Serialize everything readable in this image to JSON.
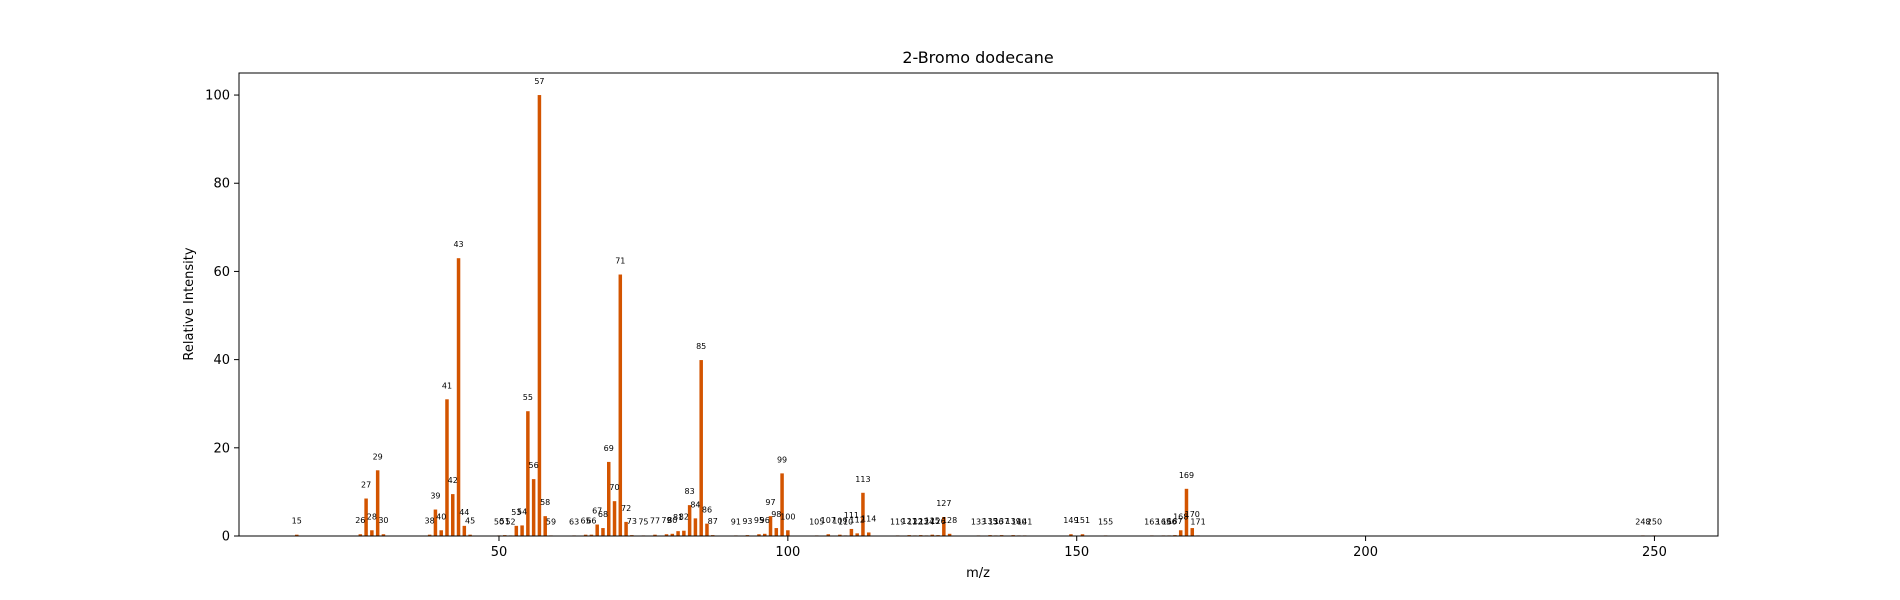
{
  "chart_data": {
    "type": "bar",
    "title": "2-Bromo dodecane",
    "xlabel": "m/z",
    "ylabel": "Relative Intensity",
    "xlim": [
      5,
      261
    ],
    "ylim": [
      0,
      105
    ],
    "xticks": [
      50,
      100,
      150,
      200,
      250
    ],
    "yticks": [
      0,
      20,
      40,
      60,
      80,
      100
    ],
    "grid": false,
    "bar_color": "#d35400",
    "peaks": [
      {
        "mz": 15,
        "intensity": 0.3
      },
      {
        "mz": 26,
        "intensity": 0.4
      },
      {
        "mz": 27,
        "intensity": 8.5
      },
      {
        "mz": 28,
        "intensity": 1.3
      },
      {
        "mz": 29,
        "intensity": 14.9
      },
      {
        "mz": 30,
        "intensity": 0.4
      },
      {
        "mz": 38,
        "intensity": 0.3
      },
      {
        "mz": 39,
        "intensity": 6.0
      },
      {
        "mz": 40,
        "intensity": 1.3
      },
      {
        "mz": 41,
        "intensity": 31.0
      },
      {
        "mz": 42,
        "intensity": 9.5
      },
      {
        "mz": 43,
        "intensity": 63.0
      },
      {
        "mz": 44,
        "intensity": 2.3
      },
      {
        "mz": 45,
        "intensity": 0.3
      },
      {
        "mz": 50,
        "intensity": 0.1
      },
      {
        "mz": 51,
        "intensity": 0.2
      },
      {
        "mz": 52,
        "intensity": 0.1
      },
      {
        "mz": 53,
        "intensity": 2.3
      },
      {
        "mz": 54,
        "intensity": 2.4
      },
      {
        "mz": 55,
        "intensity": 28.3
      },
      {
        "mz": 56,
        "intensity": 12.9
      },
      {
        "mz": 57,
        "intensity": 100
      },
      {
        "mz": 58,
        "intensity": 4.5
      },
      {
        "mz": 59,
        "intensity": 0.1
      },
      {
        "mz": 63,
        "intensity": 0.1
      },
      {
        "mz": 65,
        "intensity": 0.3
      },
      {
        "mz": 66,
        "intensity": 0.3
      },
      {
        "mz": 67,
        "intensity": 2.6
      },
      {
        "mz": 68,
        "intensity": 1.8
      },
      {
        "mz": 69,
        "intensity": 16.8
      },
      {
        "mz": 70,
        "intensity": 7.9
      },
      {
        "mz": 71,
        "intensity": 59.3
      },
      {
        "mz": 72,
        "intensity": 3.2
      },
      {
        "mz": 73,
        "intensity": 0.2
      },
      {
        "mz": 75,
        "intensity": 0.1
      },
      {
        "mz": 77,
        "intensity": 0.3
      },
      {
        "mz": 79,
        "intensity": 0.4
      },
      {
        "mz": 80,
        "intensity": 0.5
      },
      {
        "mz": 81,
        "intensity": 1.1
      },
      {
        "mz": 82,
        "intensity": 1.2
      },
      {
        "mz": 83,
        "intensity": 7.0
      },
      {
        "mz": 84,
        "intensity": 4.0
      },
      {
        "mz": 85,
        "intensity": 39.9
      },
      {
        "mz": 86,
        "intensity": 2.8
      },
      {
        "mz": 87,
        "intensity": 0.2
      },
      {
        "mz": 91,
        "intensity": 0.1
      },
      {
        "mz": 93,
        "intensity": 0.2
      },
      {
        "mz": 95,
        "intensity": 0.4
      },
      {
        "mz": 96,
        "intensity": 0.5
      },
      {
        "mz": 97,
        "intensity": 4.5
      },
      {
        "mz": 98,
        "intensity": 1.8
      },
      {
        "mz": 99,
        "intensity": 14.2
      },
      {
        "mz": 100,
        "intensity": 1.3
      },
      {
        "mz": 105,
        "intensity": 0.1
      },
      {
        "mz": 107,
        "intensity": 0.4
      },
      {
        "mz": 109,
        "intensity": 0.3
      },
      {
        "mz": 110,
        "intensity": 0.1
      },
      {
        "mz": 111,
        "intensity": 1.6
      },
      {
        "mz": 112,
        "intensity": 0.6
      },
      {
        "mz": 113,
        "intensity": 9.8
      },
      {
        "mz": 114,
        "intensity": 0.8
      },
      {
        "mz": 119,
        "intensity": 0.1
      },
      {
        "mz": 121,
        "intensity": 0.2
      },
      {
        "mz": 122,
        "intensity": 0.1
      },
      {
        "mz": 123,
        "intensity": 0.2
      },
      {
        "mz": 124,
        "intensity": 0.1
      },
      {
        "mz": 125,
        "intensity": 0.3
      },
      {
        "mz": 126,
        "intensity": 0.2
      },
      {
        "mz": 127,
        "intensity": 4.3
      },
      {
        "mz": 128,
        "intensity": 0.5
      },
      {
        "mz": 133,
        "intensity": 0.1
      },
      {
        "mz": 135,
        "intensity": 0.2
      },
      {
        "mz": 136,
        "intensity": 0.1
      },
      {
        "mz": 137,
        "intensity": 0.2
      },
      {
        "mz": 139,
        "intensity": 0.2
      },
      {
        "mz": 140,
        "intensity": 0.1
      },
      {
        "mz": 141,
        "intensity": 0.1
      },
      {
        "mz": 149,
        "intensity": 0.4
      },
      {
        "mz": 151,
        "intensity": 0.4
      },
      {
        "mz": 155,
        "intensity": 0.1
      },
      {
        "mz": 163,
        "intensity": 0.1
      },
      {
        "mz": 165,
        "intensity": 0.1
      },
      {
        "mz": 166,
        "intensity": 0.1
      },
      {
        "mz": 167,
        "intensity": 0.2
      },
      {
        "mz": 168,
        "intensity": 1.3
      },
      {
        "mz": 169,
        "intensity": 10.7
      },
      {
        "mz": 170,
        "intensity": 1.8
      },
      {
        "mz": 171,
        "intensity": 0.1
      },
      {
        "mz": 248,
        "intensity": 0.1
      },
      {
        "mz": 250,
        "intensity": 0.1
      }
    ]
  }
}
